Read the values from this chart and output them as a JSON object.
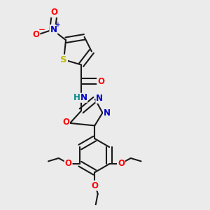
{
  "bg_color": "#ebebeb",
  "bond_color": "#1a1a1a",
  "bond_width": 1.5,
  "atom_colors": {
    "O": "#ff0000",
    "N": "#0000cc",
    "S": "#bbbb00",
    "C": "#1a1a1a",
    "H": "#008888"
  },
  "font_size": 8.5,
  "figsize": [
    3.0,
    3.0
  ],
  "dpi": 100
}
